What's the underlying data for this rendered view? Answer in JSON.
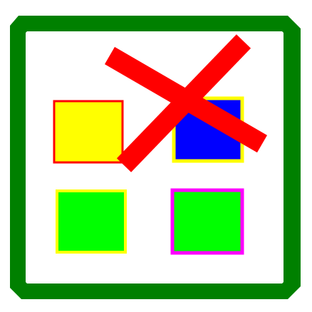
{
  "colors": {
    "background": "#ffffff",
    "frame": "#008000",
    "frame_fill": "#ffffff",
    "cross": "#ff0000"
  },
  "squares": [
    {
      "name": "yellow-square",
      "fill": "#ffff00",
      "border": "#ff0000"
    },
    {
      "name": "blue-square",
      "fill": "#0000ff",
      "border": "#ffff00"
    },
    {
      "name": "green-square-left",
      "fill": "#00ff00",
      "border": "#ffff00"
    },
    {
      "name": "green-square-right",
      "fill": "#00ff00",
      "border": "#ff00ff"
    }
  ]
}
